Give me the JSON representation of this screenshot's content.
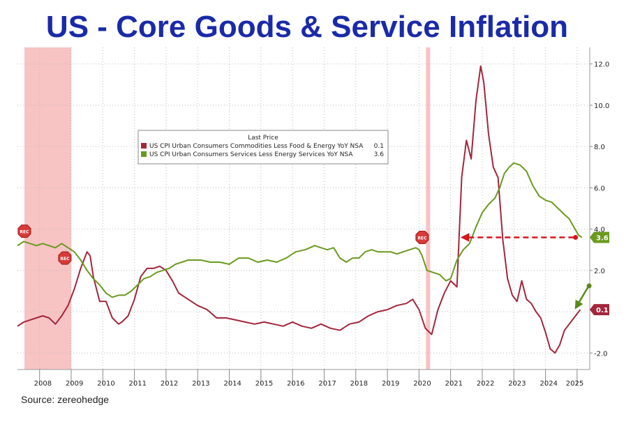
{
  "title": "US - Core Goods & Service Inflation",
  "source": "Source: zereohedge",
  "chart_data": {
    "type": "line",
    "legend": {
      "title": "Last Price",
      "placement": "upper-middle",
      "entries": [
        {
          "name": "US CPI Urban Consumers Commodities Less Food & Energy YoY NSA",
          "last": "0.1",
          "color": "#a3263b"
        },
        {
          "name": "US CPI Urban Consumers Services Less Energy Services YoY NSA",
          "last": "3.6",
          "color": "#6a9a1f"
        }
      ]
    },
    "xlim": [
      2007.3,
      2025.4
    ],
    "ylim": [
      -2.8,
      12.8
    ],
    "y_ticks": [
      -2.0,
      2.0,
      4.0,
      6.0,
      8.0,
      10.0,
      12.0
    ],
    "y_tick_labels": [
      "-2.0",
      "2.0",
      "4.0",
      "6.0",
      "8.0",
      "10.0",
      "12.0"
    ],
    "x_tick_labels": [
      "2008",
      "2009",
      "2010",
      "2011",
      "2012",
      "2013",
      "2014",
      "2015",
      "2016",
      "2017",
      "2018",
      "2019",
      "2020",
      "2021",
      "2022",
      "2023",
      "2024",
      "2025"
    ],
    "recessions": [
      [
        2007.3,
        2009.0
      ],
      [
        2020.0,
        2020.2
      ]
    ],
    "rec_label": "REC",
    "last_value_labels": {
      "goods": "0.1",
      "services": "3.6"
    },
    "series": [
      {
        "name": "US CPI Urban Consumers Commodities Less Food & Energy YoY NSA",
        "color": "#a3263b",
        "x": [
          2007.3,
          2007.5,
          2007.7,
          2007.9,
          2008.1,
          2008.3,
          2008.5,
          2008.7,
          2008.9,
          2009.1,
          2009.3,
          2009.5,
          2009.6,
          2009.7,
          2009.9,
          2010.1,
          2010.3,
          2010.5,
          2010.6,
          2010.8,
          2011.0,
          2011.2,
          2011.4,
          2011.6,
          2011.8,
          2012.0,
          2012.2,
          2012.4,
          2012.6,
          2012.8,
          2013.0,
          2013.3,
          2013.6,
          2013.9,
          2014.2,
          2014.5,
          2014.8,
          2015.1,
          2015.4,
          2015.7,
          2016.0,
          2016.3,
          2016.6,
          2016.9,
          2017.2,
          2017.5,
          2017.8,
          2018.1,
          2018.4,
          2018.7,
          2019.0,
          2019.3,
          2019.6,
          2019.8,
          2020.0,
          2020.2,
          2020.4,
          2020.6,
          2020.8,
          2021.0,
          2021.2,
          2021.35,
          2021.5,
          2021.65,
          2021.8,
          2021.95,
          2022.05,
          2022.2,
          2022.35,
          2022.5,
          2022.65,
          2022.8,
          2022.95,
          2023.1,
          2023.25,
          2023.4,
          2023.55,
          2023.7,
          2023.85,
          2024.0,
          2024.15,
          2024.3,
          2024.45,
          2024.6,
          2024.75,
          2024.9,
          2025.1
        ],
        "values": [
          -0.7,
          -0.5,
          -0.4,
          -0.3,
          -0.2,
          -0.3,
          -0.6,
          -0.2,
          0.3,
          1.1,
          2.1,
          2.9,
          2.7,
          1.7,
          0.5,
          0.5,
          -0.3,
          -0.6,
          -0.5,
          -0.2,
          0.6,
          1.7,
          2.1,
          2.1,
          2.2,
          2.0,
          1.5,
          0.9,
          0.7,
          0.5,
          0.3,
          0.1,
          -0.3,
          -0.3,
          -0.4,
          -0.5,
          -0.6,
          -0.5,
          -0.6,
          -0.7,
          -0.5,
          -0.7,
          -0.8,
          -0.6,
          -0.8,
          -0.9,
          -0.6,
          -0.5,
          -0.2,
          0.0,
          0.1,
          0.3,
          0.4,
          0.6,
          0.1,
          -0.8,
          -1.1,
          0.1,
          0.9,
          1.5,
          1.2,
          6.5,
          8.3,
          7.4,
          10.2,
          11.9,
          11.1,
          8.6,
          7.0,
          6.5,
          3.5,
          1.6,
          0.8,
          0.5,
          1.5,
          0.6,
          0.4,
          0.0,
          -0.3,
          -1.0,
          -1.8,
          -2.0,
          -1.6,
          -0.9,
          -0.6,
          -0.3,
          0.1
        ]
      },
      {
        "name": "US CPI Urban Consumers Services Less Energy Services YoY NSA",
        "color": "#6a9a1f",
        "x": [
          2007.3,
          2007.5,
          2007.7,
          2007.9,
          2008.1,
          2008.3,
          2008.5,
          2008.7,
          2008.9,
          2009.1,
          2009.3,
          2009.5,
          2009.7,
          2009.9,
          2010.1,
          2010.3,
          2010.5,
          2010.7,
          2010.9,
          2011.1,
          2011.3,
          2011.5,
          2011.7,
          2011.9,
          2012.1,
          2012.3,
          2012.5,
          2012.7,
          2012.9,
          2013.1,
          2013.4,
          2013.7,
          2014.0,
          2014.3,
          2014.6,
          2014.9,
          2015.2,
          2015.5,
          2015.8,
          2016.1,
          2016.4,
          2016.7,
          2016.9,
          2017.1,
          2017.3,
          2017.5,
          2017.7,
          2017.9,
          2018.1,
          2018.3,
          2018.5,
          2018.7,
          2018.9,
          2019.1,
          2019.3,
          2019.5,
          2019.7,
          2019.9,
          2020.0,
          2020.1,
          2020.25,
          2020.45,
          2020.65,
          2020.85,
          2021.0,
          2021.2,
          2021.4,
          2021.6,
          2021.8,
          2022.0,
          2022.2,
          2022.4,
          2022.55,
          2022.7,
          2022.85,
          2023.0,
          2023.2,
          2023.4,
          2023.6,
          2023.8,
          2024.0,
          2024.2,
          2024.4,
          2024.6,
          2024.75,
          2024.9,
          2025.05,
          2025.15
        ],
        "values": [
          3.2,
          3.4,
          3.3,
          3.2,
          3.3,
          3.2,
          3.1,
          3.3,
          3.1,
          2.9,
          2.5,
          2.0,
          1.6,
          1.3,
          0.9,
          0.7,
          0.8,
          0.8,
          1.0,
          1.3,
          1.6,
          1.7,
          1.9,
          2.0,
          2.1,
          2.3,
          2.4,
          2.5,
          2.5,
          2.5,
          2.4,
          2.4,
          2.3,
          2.6,
          2.6,
          2.4,
          2.5,
          2.4,
          2.6,
          2.9,
          3.0,
          3.2,
          3.1,
          3.0,
          3.1,
          2.6,
          2.4,
          2.6,
          2.6,
          2.9,
          3.0,
          2.9,
          2.9,
          2.9,
          2.8,
          2.9,
          3.0,
          3.1,
          3.0,
          2.7,
          2.0,
          1.9,
          1.8,
          1.5,
          1.6,
          2.5,
          3.0,
          3.3,
          4.1,
          4.8,
          5.2,
          5.5,
          6.0,
          6.7,
          7.0,
          7.2,
          7.1,
          6.8,
          6.1,
          5.6,
          5.4,
          5.3,
          5.0,
          4.7,
          4.5,
          4.1,
          3.7,
          3.6
        ]
      }
    ]
  }
}
